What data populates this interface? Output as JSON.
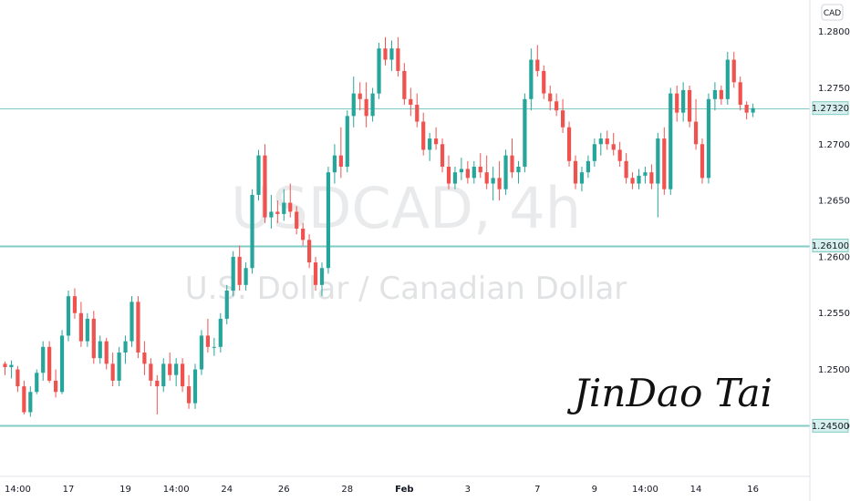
{
  "chart_data": {
    "type": "candlestick",
    "symbol": "USDCAD",
    "interval": "4h",
    "description": "U.S. Dollar / Canadian Dollar",
    "currency": "CAD",
    "y_axis_ticks": [
      "1.28000",
      "1.27500",
      "1.27000",
      "1.26500",
      "1.26000",
      "1.25500",
      "1.25000",
      "1.24500"
    ],
    "y_axis_values": [
      1.28,
      1.275,
      1.27,
      1.265,
      1.26,
      1.255,
      1.25,
      1.245
    ],
    "ylim": [
      1.2405,
      1.2828
    ],
    "x_axis_ticks": [
      {
        "label": "14:00",
        "bar": 2
      },
      {
        "label": "17",
        "bar": 10
      },
      {
        "label": "19",
        "bar": 19
      },
      {
        "label": "14:00",
        "bar": 27
      },
      {
        "label": "24",
        "bar": 35
      },
      {
        "label": "26",
        "bar": 44
      },
      {
        "label": "28",
        "bar": 54
      },
      {
        "label": "Feb",
        "bar": 63,
        "bold": true
      },
      {
        "label": "3",
        "bar": 73
      },
      {
        "label": "7",
        "bar": 84
      },
      {
        "label": "9",
        "bar": 93
      },
      {
        "label": "14:00",
        "bar": 101
      },
      {
        "label": "14",
        "bar": 109
      },
      {
        "label": "16",
        "bar": 118
      }
    ],
    "horizontal_levels": [
      {
        "value": 1.261,
        "label": "1.26100"
      },
      {
        "value": 1.245,
        "label": "1.24500"
      }
    ],
    "current_price": {
      "value": 1.2732,
      "label": "1.27320"
    },
    "up_color": "#26a69a",
    "down_color": "#ef5350",
    "level_color": "#80cbc4",
    "signature_text": "JinDao Tai",
    "candles": [
      [
        1.2505,
        1.2507,
        1.2495,
        1.2502
      ],
      [
        1.2502,
        1.2508,
        1.2492,
        1.2504
      ],
      [
        1.25,
        1.2503,
        1.248,
        1.2485
      ],
      [
        1.2485,
        1.249,
        1.246,
        1.2462
      ],
      [
        1.2462,
        1.2485,
        1.2458,
        1.248
      ],
      [
        1.248,
        1.25,
        1.2478,
        1.2497
      ],
      [
        1.2497,
        1.2525,
        1.249,
        1.252
      ],
      [
        1.252,
        1.2525,
        1.2488,
        1.249
      ],
      [
        1.249,
        1.25,
        1.2475,
        1.248
      ],
      [
        1.248,
        1.2535,
        1.2478,
        1.253
      ],
      [
        1.253,
        1.257,
        1.2525,
        1.2565
      ],
      [
        1.2565,
        1.2572,
        1.2545,
        1.255
      ],
      [
        1.255,
        1.256,
        1.252,
        1.2525
      ],
      [
        1.2525,
        1.255,
        1.252,
        1.2545
      ],
      [
        1.2545,
        1.2552,
        1.2505,
        1.251
      ],
      [
        1.251,
        1.253,
        1.2505,
        1.2525
      ],
      [
        1.2525,
        1.2528,
        1.25,
        1.2505
      ],
      [
        1.2505,
        1.2515,
        1.2485,
        1.249
      ],
      [
        1.249,
        1.252,
        1.2485,
        1.2515
      ],
      [
        1.2515,
        1.253,
        1.2505,
        1.2525
      ],
      [
        1.2525,
        1.2565,
        1.252,
        1.256
      ],
      [
        1.256,
        1.2565,
        1.251,
        1.2515
      ],
      [
        1.2515,
        1.2525,
        1.2495,
        1.2505
      ],
      [
        1.2505,
        1.251,
        1.2485,
        1.249
      ],
      [
        1.249,
        1.2495,
        1.246,
        1.2485
      ],
      [
        1.2485,
        1.251,
        1.248,
        1.2505
      ],
      [
        1.2505,
        1.2515,
        1.249,
        1.2495
      ],
      [
        1.2495,
        1.251,
        1.2485,
        1.2505
      ],
      [
        1.2505,
        1.251,
        1.248,
        1.2485
      ],
      [
        1.2485,
        1.2495,
        1.2465,
        1.247
      ],
      [
        1.247,
        1.2505,
        1.2465,
        1.25
      ],
      [
        1.25,
        1.2535,
        1.2495,
        1.253
      ],
      [
        1.253,
        1.2545,
        1.2515,
        1.252
      ],
      [
        1.252,
        1.2528,
        1.2512,
        1.252
      ],
      [
        1.252,
        1.255,
        1.2515,
        1.2545
      ],
      [
        1.2545,
        1.2575,
        1.254,
        1.257
      ],
      [
        1.257,
        1.2605,
        1.2565,
        1.26
      ],
      [
        1.26,
        1.261,
        1.257,
        1.2575
      ],
      [
        1.2575,
        1.2595,
        1.257,
        1.259
      ],
      [
        1.259,
        1.266,
        1.2585,
        1.2655
      ],
      [
        1.2655,
        1.2695,
        1.265,
        1.269
      ],
      [
        1.269,
        1.27,
        1.263,
        1.2635
      ],
      [
        1.2635,
        1.2655,
        1.2625,
        1.264
      ],
      [
        1.264,
        1.265,
        1.263,
        1.2638
      ],
      [
        1.2638,
        1.266,
        1.2632,
        1.2648
      ],
      [
        1.2648,
        1.2665,
        1.2635,
        1.264
      ],
      [
        1.264,
        1.2645,
        1.262,
        1.2625
      ],
      [
        1.2625,
        1.263,
        1.261,
        1.2615
      ],
      [
        1.2615,
        1.262,
        1.259,
        1.2595
      ],
      [
        1.2595,
        1.26,
        1.257,
        1.2575
      ],
      [
        1.2575,
        1.2595,
        1.2565,
        1.259
      ],
      [
        1.259,
        1.268,
        1.2585,
        1.2675
      ],
      [
        1.2675,
        1.27,
        1.2665,
        1.269
      ],
      [
        1.269,
        1.2715,
        1.267,
        1.268
      ],
      [
        1.268,
        1.273,
        1.2675,
        1.2725
      ],
      [
        1.2725,
        1.276,
        1.2715,
        1.2745
      ],
      [
        1.2745,
        1.2755,
        1.273,
        1.274
      ],
      [
        1.274,
        1.2755,
        1.2715,
        1.2725
      ],
      [
        1.2725,
        1.275,
        1.272,
        1.2745
      ],
      [
        1.2745,
        1.279,
        1.274,
        1.2785
      ],
      [
        1.2785,
        1.2795,
        1.277,
        1.2775
      ],
      [
        1.2775,
        1.2792,
        1.2765,
        1.2785
      ],
      [
        1.2785,
        1.2795,
        1.276,
        1.2765
      ],
      [
        1.2765,
        1.2772,
        1.2735,
        1.274
      ],
      [
        1.274,
        1.275,
        1.2725,
        1.2735
      ],
      [
        1.2735,
        1.2745,
        1.2715,
        1.272
      ],
      [
        1.272,
        1.2728,
        1.269,
        1.2695
      ],
      [
        1.2695,
        1.271,
        1.2685,
        1.2705
      ],
      [
        1.2705,
        1.2715,
        1.2695,
        1.27
      ],
      [
        1.27,
        1.2705,
        1.2675,
        1.268
      ],
      [
        1.268,
        1.269,
        1.266,
        1.2665
      ],
      [
        1.2665,
        1.268,
        1.266,
        1.2675
      ],
      [
        1.2675,
        1.2688,
        1.2668,
        1.2678
      ],
      [
        1.2678,
        1.2685,
        1.2665,
        1.267
      ],
      [
        1.267,
        1.2685,
        1.2665,
        1.268
      ],
      [
        1.268,
        1.2692,
        1.267,
        1.2675
      ],
      [
        1.2675,
        1.269,
        1.266,
        1.2665
      ],
      [
        1.2665,
        1.268,
        1.265,
        1.267
      ],
      [
        1.267,
        1.2685,
        1.265,
        1.266
      ],
      [
        1.266,
        1.2695,
        1.2655,
        1.269
      ],
      [
        1.269,
        1.2705,
        1.267,
        1.2675
      ],
      [
        1.2675,
        1.2685,
        1.2665,
        1.268
      ],
      [
        1.268,
        1.2745,
        1.2675,
        1.274
      ],
      [
        1.274,
        1.2785,
        1.273,
        1.2775
      ],
      [
        1.2775,
        1.2788,
        1.276,
        1.2765
      ],
      [
        1.2765,
        1.277,
        1.274,
        1.2745
      ],
      [
        1.2745,
        1.2752,
        1.273,
        1.2738
      ],
      [
        1.2738,
        1.2745,
        1.2725,
        1.273
      ],
      [
        1.273,
        1.274,
        1.271,
        1.2715
      ],
      [
        1.2715,
        1.272,
        1.268,
        1.2685
      ],
      [
        1.2685,
        1.269,
        1.266,
        1.2665
      ],
      [
        1.2665,
        1.268,
        1.2658,
        1.2675
      ],
      [
        1.2675,
        1.269,
        1.267,
        1.2685
      ],
      [
        1.2685,
        1.2705,
        1.268,
        1.27
      ],
      [
        1.27,
        1.271,
        1.269,
        1.2705
      ],
      [
        1.2705,
        1.2712,
        1.2695,
        1.27
      ],
      [
        1.27,
        1.271,
        1.269,
        1.2695
      ],
      [
        1.2695,
        1.2702,
        1.268,
        1.2685
      ],
      [
        1.2685,
        1.2692,
        1.2665,
        1.267
      ],
      [
        1.267,
        1.2675,
        1.266,
        1.2665
      ],
      [
        1.2665,
        1.2678,
        1.266,
        1.2672
      ],
      [
        1.2672,
        1.268,
        1.2665,
        1.2675
      ],
      [
        1.2675,
        1.2682,
        1.266,
        1.2665
      ],
      [
        1.2665,
        1.271,
        1.2635,
        1.2705
      ],
      [
        1.2705,
        1.2715,
        1.2655,
        1.266
      ],
      [
        1.266,
        1.275,
        1.2655,
        1.2745
      ],
      [
        1.2745,
        1.2752,
        1.272,
        1.2728
      ],
      [
        1.2728,
        1.2755,
        1.272,
        1.2748
      ],
      [
        1.2748,
        1.2752,
        1.2715,
        1.272
      ],
      [
        1.272,
        1.274,
        1.2695,
        1.27
      ],
      [
        1.27,
        1.2705,
        1.2665,
        1.267
      ],
      [
        1.267,
        1.2745,
        1.2665,
        1.274
      ],
      [
        1.274,
        1.2755,
        1.273,
        1.2748
      ],
      [
        1.2748,
        1.2752,
        1.2735,
        1.274
      ],
      [
        1.274,
        1.2782,
        1.2735,
        1.2775
      ],
      [
        1.2775,
        1.2782,
        1.275,
        1.2755
      ],
      [
        1.2755,
        1.276,
        1.273,
        1.2735
      ],
      [
        1.2735,
        1.2738,
        1.2722,
        1.2728
      ],
      [
        1.2728,
        1.2736,
        1.2724,
        1.2732
      ]
    ]
  }
}
